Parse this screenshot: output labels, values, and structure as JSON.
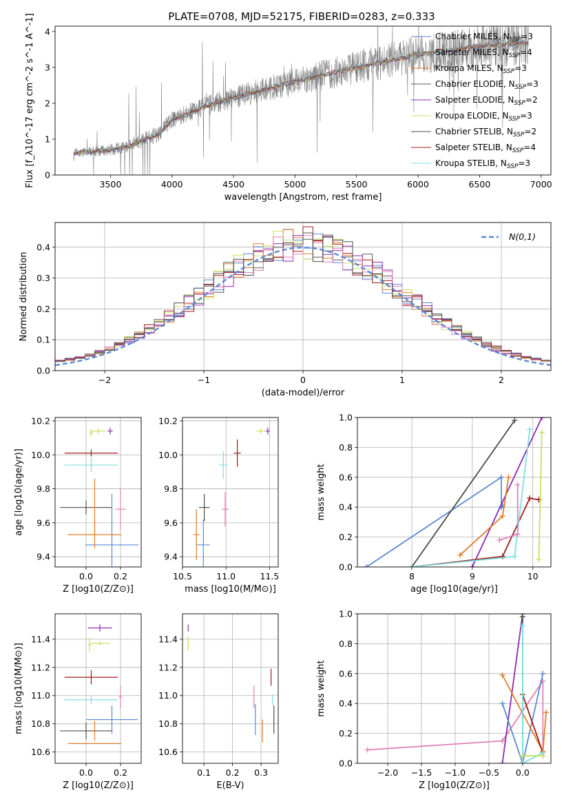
{
  "figure_title": "PLATE=0708, MJD=52175, FIBERID=0283, z=0.333",
  "colors": {
    "Chabrier MILES": "#5b87d6",
    "Salpeter MILES": "#7a7a7a",
    "Kroupa MILES": "#e07b27",
    "Chabrier ELODIE": "#5a5a5a",
    "Salpeter ELODIE": "#8a2ab0",
    "Kroupa ELODIE": "#c6e05c",
    "Chabrier STELIB": "#4a4a4a",
    "Salpeter STELIB": "#a01818",
    "Kroupa STELIB": "#7fdde0",
    "pink": "#e07fb8",
    "normal": "#5b87d6"
  },
  "chart_data": [
    {
      "id": "spectrum",
      "type": "line",
      "title": "",
      "xlabel": "wavelength [Angstrom, rest frame]",
      "ylabel": "Flux [f_λ10^-17 erg cm^-2 s^-1 A^-1]",
      "xlim": [
        3050,
        7080
      ],
      "ylim": [
        0,
        4.15
      ],
      "xticks": [
        3500,
        4000,
        4500,
        5000,
        5500,
        6000,
        6500,
        7000
      ],
      "yticks": [
        0,
        1,
        2,
        3,
        4
      ],
      "legend_position": "top-right",
      "legend": [
        {
          "name": "Chabrier MILES",
          "sub": "SSP",
          "n": "3"
        },
        {
          "name": "Salpeter MILES",
          "sub": "SSP",
          "n": "4"
        },
        {
          "name": "Kroupa MILES",
          "sub": "SSP",
          "n": "3"
        },
        {
          "name": "Chabrier ELODIE",
          "sub": "SSP",
          "n": "3"
        },
        {
          "name": "Salpeter ELODIE",
          "sub": "SSP",
          "n": "2"
        },
        {
          "name": "Kroupa ELODIE",
          "sub": "SSP",
          "n": "3"
        },
        {
          "name": "Chabrier STELIB",
          "sub": "SSP",
          "n": "2"
        },
        {
          "name": "Salpeter STELIB",
          "sub": "SSP",
          "n": "4"
        },
        {
          "name": "Kroupa STELIB",
          "sub": "SSP",
          "n": "3"
        }
      ],
      "continuum": {
        "x": [
          3200,
          3450,
          3600,
          3750,
          3900,
          4000,
          4300,
          4600,
          5000,
          5500,
          6000,
          6500,
          7000
        ],
        "y": [
          0.62,
          0.68,
          0.75,
          0.95,
          1.15,
          1.55,
          1.95,
          2.25,
          2.6,
          3.0,
          3.35,
          3.6,
          3.72
        ]
      },
      "spectrum_range": [
        3200,
        6900
      ]
    },
    {
      "id": "residuals",
      "type": "line",
      "title": "",
      "xlabel": "(data-model)/error",
      "ylabel": "Normed distribution",
      "xlim": [
        -2.5,
        2.5
      ],
      "ylim": [
        0,
        0.48
      ],
      "xticks": [
        -2,
        -1,
        0,
        1,
        2
      ],
      "xticklabels": [
        "−2",
        "−1",
        "0",
        "1",
        "2"
      ],
      "yticks": [
        0.0,
        0.1,
        0.2,
        0.3,
        0.4
      ],
      "yticklabels": [
        "0.0",
        "0.1",
        "0.2",
        "0.3",
        "0.4"
      ],
      "legend_label": "N(0,1)",
      "legend_position": "top-right",
      "grid": true,
      "bin_width": 0.1
    },
    {
      "id": "age_vs_Z",
      "type": "scatter",
      "xlabel": "Z [log10(Z/Z⊙)]",
      "ylabel": "age [log10(age/yr)]",
      "xlim": [
        -0.18,
        0.32
      ],
      "ylim": [
        9.34,
        10.22
      ],
      "xticks": [
        0.0,
        0.2
      ],
      "xticklabels": [
        "0.0",
        "0.2"
      ],
      "yticks": [
        9.4,
        9.6,
        9.8,
        10.0,
        10.2
      ],
      "yticklabels": [
        "9.4",
        "9.6",
        "9.8",
        "10.0",
        "10.2"
      ],
      "grid": true,
      "points": [
        {
          "x": 0.14,
          "y": 10.14,
          "xe": 0.03,
          "ye": 0.04,
          "c": "Salpeter ELODIE"
        },
        {
          "x": 0.07,
          "y": 10.14,
          "xe": 0.09,
          "ye": 0.03,
          "c": "Kroupa ELODIE"
        },
        {
          "x": 0.03,
          "y": 10.13,
          "xe": 0.02,
          "ye": 0.04,
          "c": "Kroupa ELODIE"
        },
        {
          "x": 0.03,
          "y": 10.01,
          "xe": 0.31,
          "ye": 0.04,
          "c": "Salpeter STELIB"
        },
        {
          "x": 0.03,
          "y": 9.94,
          "xe": 0.31,
          "ye": 0.08,
          "c": "Kroupa STELIB"
        },
        {
          "x": 0.0,
          "y": 9.69,
          "xe": 0.3,
          "ye": 0.08,
          "c": "Chabrier STELIB"
        },
        {
          "x": 0.2,
          "y": 9.68,
          "xe": 0.06,
          "ye": 0.24,
          "c": "pink"
        },
        {
          "x": 0.15,
          "y": 9.47,
          "xe": 0.31,
          "ye": 0.6,
          "c": "Chabrier MILES"
        },
        {
          "x": 0.05,
          "y": 9.53,
          "xe": 0.31,
          "ye": 0.16,
          "c": "Kroupa MILES"
        },
        {
          "x": 0.05,
          "y": 9.7,
          "xe": 0.0,
          "ye": 0.32,
          "c": "Kroupa MILES"
        }
      ]
    },
    {
      "id": "age_vs_mass",
      "type": "scatter",
      "xlabel": "mass [log10(M/M⊙)]",
      "ylabel": "",
      "xlim": [
        10.5,
        11.6
      ],
      "ylim": [
        9.34,
        10.22
      ],
      "xticks": [
        10.5,
        11.0,
        11.5
      ],
      "xticklabels": [
        "10.5",
        "11.0",
        "11.5"
      ],
      "yticks": [
        9.4,
        9.6,
        9.8,
        10.0,
        10.2
      ],
      "yticklabels": [
        "9.4",
        "9.6",
        "9.8",
        "10.0",
        "10.2"
      ],
      "grid": true,
      "points": [
        {
          "x": 11.48,
          "y": 10.14,
          "xe": 0.05,
          "ye": 0.04,
          "c": "Salpeter ELODIE"
        },
        {
          "x": 11.4,
          "y": 10.14,
          "xe": 0.1,
          "ye": 0.03,
          "c": "Kroupa ELODIE"
        },
        {
          "x": 11.13,
          "y": 10.01,
          "xe": 0.08,
          "ye": 0.16,
          "c": "Salpeter STELIB"
        },
        {
          "x": 10.97,
          "y": 9.94,
          "xe": 0.1,
          "ye": 0.16,
          "c": "Kroupa STELIB"
        },
        {
          "x": 10.75,
          "y": 9.69,
          "xe": 0.12,
          "ye": 0.16,
          "c": "Chabrier STELIB"
        },
        {
          "x": 10.99,
          "y": 9.68,
          "xe": 0.08,
          "ye": 0.2,
          "c": "pink"
        },
        {
          "x": 10.74,
          "y": 9.47,
          "xe": 0.15,
          "ye": 0.3,
          "c": "Chabrier MILES"
        },
        {
          "x": 10.66,
          "y": 9.53,
          "xe": 0.07,
          "ye": 0.3,
          "c": "Kroupa MILES"
        }
      ]
    },
    {
      "id": "weight_vs_age",
      "type": "line",
      "xlabel": "age [log10(age/yr)]",
      "ylabel": "mass weight",
      "xlim": [
        7.1,
        10.3
      ],
      "ylim": [
        0,
        1.0
      ],
      "xticks": [
        8,
        9,
        10
      ],
      "xticklabels": [
        "8",
        "9",
        "10"
      ],
      "yticks": [
        0.0,
        0.2,
        0.4,
        0.6,
        0.8,
        1.0
      ],
      "yticklabels": [
        "0.0",
        "0.2",
        "0.4",
        "0.6",
        "0.8",
        "1.0"
      ],
      "grid": true,
      "series": [
        {
          "c": "Chabrier MILES",
          "x": [
            7.25,
            9.48,
            9.48,
            9.5
          ],
          "y": [
            0.0,
            0.6,
            0.4,
            0.41
          ]
        },
        {
          "c": "Chabrier STELIB",
          "x": [
            8.0,
            9.7
          ],
          "y": [
            0.0,
            0.98
          ]
        },
        {
          "c": "Salpeter ELODIE",
          "x": [
            9.0,
            10.15
          ],
          "y": [
            0.0,
            1.0
          ]
        },
        {
          "c": "Kroupa MILES",
          "x": [
            8.8,
            9.5,
            9.6
          ],
          "y": [
            0.08,
            0.34,
            0.6
          ]
        },
        {
          "c": "Salpeter STELIB",
          "x": [
            8.0,
            9.5,
            9.95,
            10.1
          ],
          "y": [
            0.0,
            0.07,
            0.46,
            0.45
          ]
        },
        {
          "c": "Kroupa STELIB",
          "x": [
            8.0,
            9.7,
            9.95
          ],
          "y": [
            0.0,
            0.07,
            0.92
          ]
        },
        {
          "c": "Kroupa ELODIE",
          "x": [
            10.1,
            10.15,
            10.15
          ],
          "y": [
            0.05,
            0.9,
            0.9
          ]
        },
        {
          "c": "pink",
          "x": [
            9.45,
            9.75,
            9.75
          ],
          "y": [
            0.18,
            0.22,
            0.55
          ]
        }
      ]
    },
    {
      "id": "mass_vs_Z",
      "type": "scatter",
      "xlabel": "Z [log10(Z/Z⊙)]",
      "ylabel": "mass [log10(M/M⊙)]",
      "xlim": [
        -0.18,
        0.32
      ],
      "ylim": [
        10.52,
        11.58
      ],
      "xticks": [
        0.0,
        0.2
      ],
      "xticklabels": [
        "0.0",
        "0.2"
      ],
      "yticks": [
        10.6,
        10.8,
        11.0,
        11.2,
        11.4
      ],
      "yticklabels": [
        "10.6",
        "10.8",
        "11.0",
        "11.2",
        "11.4"
      ],
      "grid": true,
      "points": [
        {
          "x": 0.08,
          "y": 11.48,
          "xe": 0.14,
          "ye": 0.05,
          "c": "Salpeter ELODIE"
        },
        {
          "x": 0.08,
          "y": 11.37,
          "xe": 0.11,
          "ye": 0.03,
          "c": "Kroupa ELODIE"
        },
        {
          "x": 0.02,
          "y": 11.36,
          "xe": 0.02,
          "ye": 0.1,
          "c": "Kroupa ELODIE"
        },
        {
          "x": 0.03,
          "y": 11.13,
          "xe": 0.31,
          "ye": 0.1,
          "c": "Salpeter STELIB"
        },
        {
          "x": 0.03,
          "y": 10.97,
          "xe": 0.31,
          "ye": 0.06,
          "c": "Kroupa STELIB"
        },
        {
          "x": 0.0,
          "y": 10.75,
          "xe": 0.3,
          "ye": 0.12,
          "c": "Chabrier STELIB"
        },
        {
          "x": 0.2,
          "y": 10.99,
          "xe": 0.02,
          "ye": 0.16,
          "c": "pink"
        },
        {
          "x": 0.15,
          "y": 10.83,
          "xe": 0.3,
          "ye": 0.2,
          "c": "Chabrier MILES"
        },
        {
          "x": 0.05,
          "y": 10.66,
          "xe": 0.31,
          "ye": 0.0,
          "c": "Kroupa MILES"
        },
        {
          "x": 0.05,
          "y": 10.75,
          "xe": 0.0,
          "ye": 0.14,
          "c": "Kroupa MILES"
        }
      ]
    },
    {
      "id": "mass_vs_ebv",
      "type": "scatter",
      "xlabel": "E(B-V)",
      "ylabel": "",
      "xlim": [
        0.025,
        0.36
      ],
      "ylim": [
        10.52,
        11.58
      ],
      "xticks": [
        0.1,
        0.2,
        0.3
      ],
      "xticklabels": [
        "0.1",
        "0.2",
        "0.3"
      ],
      "yticks": [
        10.6,
        10.8,
        11.0,
        11.2,
        11.4
      ],
      "yticklabels": [
        "10.6",
        "10.8",
        "11.0",
        "11.2",
        "11.4"
      ],
      "grid": true,
      "points": [
        {
          "x": 0.045,
          "y": 11.48,
          "xe": 0.0,
          "ye": 0.05,
          "c": "Salpeter ELODIE"
        },
        {
          "x": 0.045,
          "y": 11.37,
          "xe": 0.0,
          "ye": 0.1,
          "c": "Kroupa ELODIE"
        },
        {
          "x": 0.335,
          "y": 11.13,
          "xe": 0.0,
          "ye": 0.12,
          "c": "Salpeter STELIB"
        },
        {
          "x": 0.34,
          "y": 10.97,
          "xe": 0.0,
          "ye": 0.08,
          "c": "Kroupa STELIB"
        },
        {
          "x": 0.345,
          "y": 10.83,
          "xe": 0.0,
          "ye": 0.2,
          "c": "Chabrier STELIB"
        },
        {
          "x": 0.275,
          "y": 10.99,
          "xe": 0.0,
          "ye": 0.16,
          "c": "pink"
        },
        {
          "x": 0.28,
          "y": 10.83,
          "xe": 0.0,
          "ye": 0.22,
          "c": "Chabrier MILES"
        },
        {
          "x": 0.305,
          "y": 10.75,
          "xe": 0.0,
          "ye": 0.16,
          "c": "Kroupa MILES"
        }
      ]
    },
    {
      "id": "weight_vs_Z",
      "type": "line",
      "xlabel": "Z [log10(Z/Z⊙)]",
      "ylabel": "mass weight",
      "xlim": [
        -2.45,
        0.42
      ],
      "ylim": [
        0,
        1.0
      ],
      "xticks": [
        -2.0,
        -1.5,
        -1.0,
        -0.5,
        0.0
      ],
      "xticklabels": [
        "−2.0",
        "−1.5",
        "−1.0",
        "−0.5",
        "0.0"
      ],
      "yticks": [
        0.0,
        0.2,
        0.4,
        0.6,
        0.8,
        1.0
      ],
      "yticklabels": [
        "0.0",
        "0.2",
        "0.4",
        "0.6",
        "0.8",
        "1.0"
      ],
      "grid": true,
      "series": [
        {
          "c": "pink",
          "x": [
            -2.3,
            -0.3,
            0.3,
            0.3
          ],
          "y": [
            0.09,
            0.15,
            0.55,
            0.05
          ]
        },
        {
          "c": "Salpeter ELODIE",
          "x": [
            -0.3,
            0.0
          ],
          "y": [
            0.0,
            1.0
          ]
        },
        {
          "c": "Chabrier MILES",
          "x": [
            -0.3,
            0.0,
            0.3
          ],
          "y": [
            0.4,
            0.0,
            0.6
          ]
        },
        {
          "c": "Kroupa MILES",
          "x": [
            -0.3,
            0.3,
            0.35
          ],
          "y": [
            0.59,
            0.08,
            0.34
          ]
        },
        {
          "c": "Salpeter STELIB",
          "x": [
            0.0,
            0.3,
            0.3
          ],
          "y": [
            0.46,
            0.07,
            0.05
          ]
        },
        {
          "c": "Chabrier STELIB",
          "x": [
            0.0,
            0.0
          ],
          "y": [
            0.0,
            0.98
          ]
        },
        {
          "c": "Kroupa STELIB",
          "x": [
            0.0,
            0.0,
            0.3
          ],
          "y": [
            0.92,
            0.0,
            0.07
          ]
        },
        {
          "c": "Kroupa ELODIE",
          "x": [
            0.0,
            0.3
          ],
          "y": [
            0.05,
            0.05
          ]
        }
      ]
    }
  ]
}
